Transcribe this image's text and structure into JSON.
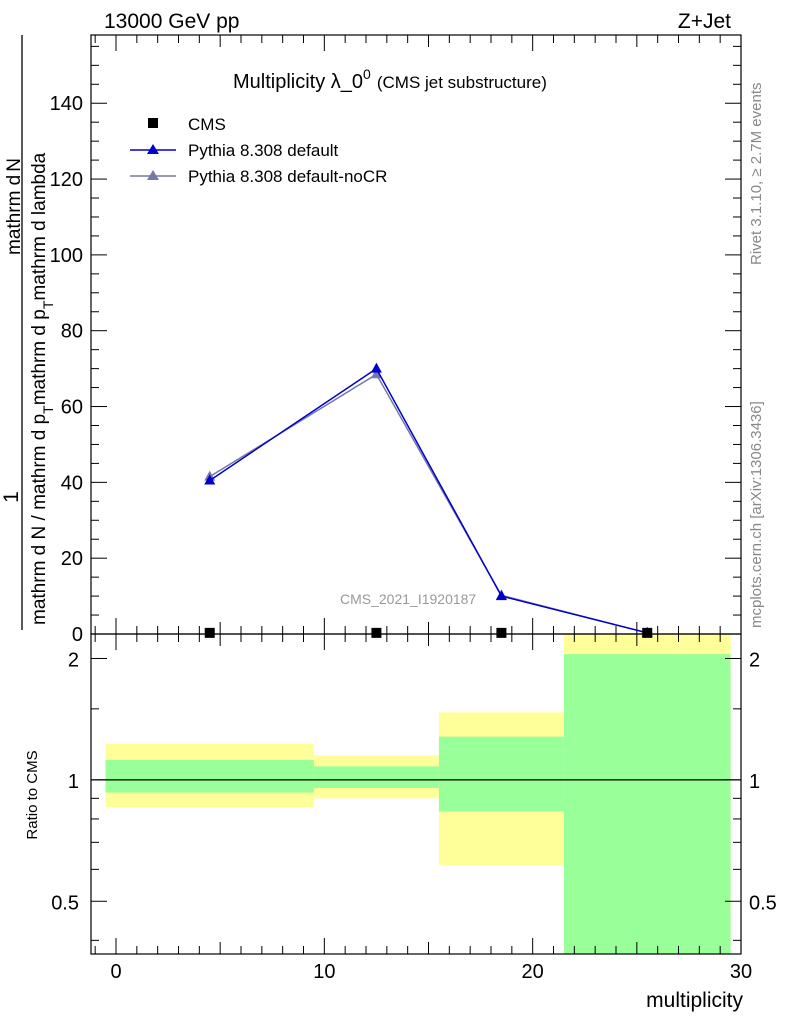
{
  "header": {
    "left": "13000 GeV pp",
    "right": "Z+Jet"
  },
  "side_text": {
    "rivet": "Rivet 3.1.10, ≥ 2.7M events",
    "mcplots": "mcplots.cern.ch [arXiv:1306.3436]"
  },
  "watermark": "CMS_2021_I1920187",
  "chart_data": [
    {
      "type": "line",
      "title_main": "Multiplicity λ_0",
      "title_sup": "0",
      "title_sub": "(CMS jet substructure)",
      "ylabel_num": "1",
      "ylabel_den": "mathrm d N / mathrm d p",
      "ylabel_den2": "mathrm d p",
      "ylabel_rest": "mathrm d lambda",
      "ylabel_num2": "mathrm d",
      "ylabel_N": "N",
      "ylabel_frac_num": "mathrm d",
      "ylabel_frac_T": "T",
      "ylabel_frac_mid": "mathrm d",
      "ylabel_text_full": "mathrm d N / mathrm d p_T mathrm d p_T mathrm d lambda",
      "xlim": [
        -1.2,
        30
      ],
      "ylim": [
        0,
        158
      ],
      "yticks": [
        0,
        20,
        40,
        60,
        80,
        100,
        120,
        140
      ],
      "ytick_labels": [
        "0",
        "20",
        "40",
        "60",
        "80",
        "100",
        "120",
        "140"
      ],
      "legend_position": "top-left",
      "series": [
        {
          "name": "CMS",
          "color": "#000000",
          "marker": "square",
          "x": [
            4.5,
            12.5,
            18.5,
            25.5
          ],
          "y": [
            0.3,
            0.3,
            0.3,
            0.3
          ]
        },
        {
          "name": "Pythia 8.308 default",
          "color": "#0000cc",
          "marker": "triangle",
          "x": [
            4.5,
            12.5,
            18.5,
            25.5
          ],
          "y": [
            40.5,
            70.0,
            10.0,
            0.3
          ]
        },
        {
          "name": "Pythia 8.308 default-noCR",
          "color": "#7777aa",
          "marker": "triangle",
          "x": [
            4.5,
            12.5,
            18.5,
            25.5
          ],
          "y": [
            41.5,
            68.5,
            10.2,
            0.3
          ]
        }
      ]
    },
    {
      "type": "area",
      "ylabel": "Ratio to CMS",
      "xlabel": "multiplicity",
      "xlim": [
        -1.2,
        30
      ],
      "ylim": [
        0.37,
        2.3
      ],
      "log_y": true,
      "xticks": [
        0,
        10,
        20,
        30
      ],
      "xtick_labels": [
        "0",
        "10",
        "20",
        "30"
      ],
      "yticks": [
        0.5,
        1,
        2
      ],
      "ytick_labels": [
        "0.5",
        "1",
        "2"
      ],
      "bins": [
        {
          "x_low": -0.5,
          "x_high": 9.5,
          "band_outer": [
            0.855,
            1.23
          ],
          "band_inner": [
            0.93,
            1.12
          ]
        },
        {
          "x_low": 9.5,
          "x_high": 15.5,
          "band_outer": [
            0.9,
            1.15
          ],
          "band_inner": [
            0.955,
            1.08
          ]
        },
        {
          "x_low": 15.5,
          "x_high": 21.5,
          "band_outer": [
            0.615,
            1.47
          ],
          "band_inner": [
            0.835,
            1.28
          ]
        },
        {
          "x_low": 21.5,
          "x_high": 29.5,
          "band_outer": [
            0.37,
            2.3
          ],
          "band_inner": [
            0.37,
            2.05
          ]
        }
      ],
      "reference_line": 1,
      "colors": {
        "outer": "#ffff99",
        "inner": "#99ff99"
      }
    }
  ]
}
